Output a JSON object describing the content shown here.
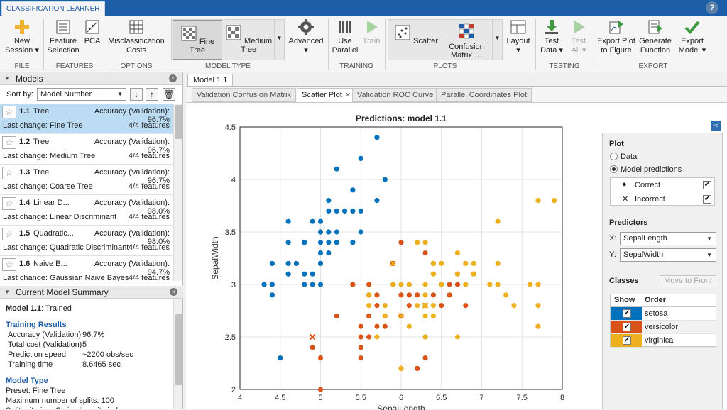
{
  "app": {
    "title": "CLASSIFICATION LEARNER",
    "help": "?"
  },
  "ribbon": {
    "buttons": {
      "new_session": "New\nSession ▾",
      "feature_selection": "Feature\nSelection",
      "pca": "PCA",
      "misclassification_costs": "Misclassification\nCosts",
      "advanced": "Advanced\n▾",
      "use_parallel": "Use\nParallel",
      "train": "Train",
      "scatter": "Scatter",
      "confusion_matrix": "Confusion\nMatrix …",
      "layout": "Layout\n▾",
      "test_data": "Test\nData ▾",
      "test_all": "Test\nAll ▾",
      "export_plot": "Export Plot\nto Figure",
      "generate_function": "Generate\nFunction",
      "export_model": "Export\nModel ▾"
    },
    "gallery": {
      "fine_tree": "Fine Tree",
      "medium_tree": "Medium Tree"
    },
    "groups": {
      "file": "FILE",
      "features": "FEATURES",
      "options": "OPTIONS",
      "model_type": "MODEL TYPE",
      "training": "TRAINING",
      "plots": "PLOTS",
      "testing": "TESTING",
      "export": "EXPORT"
    }
  },
  "models_panel": {
    "title": "Models",
    "sort_label": "Sort by:",
    "sort_value": "Model Number",
    "models": [
      {
        "num": "1.1",
        "name": "Tree",
        "accuracy": "Accuracy (Validation): 96.7%",
        "last_change": "Last change: Fine Tree",
        "features": "4/4 features"
      },
      {
        "num": "1.2",
        "name": "Tree",
        "accuracy": "Accuracy (Validation): 96.7%",
        "last_change": "Last change: Medium Tree",
        "features": "4/4 features"
      },
      {
        "num": "1.3",
        "name": "Tree",
        "accuracy": "Accuracy (Validation): 96.7%",
        "last_change": "Last change: Coarse Tree",
        "features": "4/4 features"
      },
      {
        "num": "1.4",
        "name": "Linear D...",
        "accuracy": "Accuracy (Validation): 98.0%",
        "last_change": "Last change: Linear Discriminant",
        "features": "4/4 features"
      },
      {
        "num": "1.5",
        "name": "Quadratic...",
        "accuracy": "Accuracy (Validation): 98.0%",
        "last_change": "Last change: Quadratic Discriminant",
        "features": "4/4 features"
      },
      {
        "num": "1.6",
        "name": "Naive B...",
        "accuracy": "Accuracy (Validation): 94.7%",
        "last_change": "Last change: Gaussian Naive Bayes",
        "features": "4/4 features"
      }
    ]
  },
  "summary": {
    "title": "Current Model Summary",
    "model": "Model 1.1",
    "state": ": Trained",
    "training_title": "Training Results",
    "results": [
      {
        "k": "Accuracy (Validation)",
        "v": "96.7%"
      },
      {
        "k": "Total cost (Validation)",
        "v": "5"
      },
      {
        "k": "Prediction speed",
        "v": "~2200 obs/sec"
      },
      {
        "k": "Training time",
        "v": "8.6465 sec"
      }
    ],
    "model_type_title": "Model Type",
    "model_type": [
      "Preset: Fine Tree",
      "Maximum number of splits: 100",
      "Split criterion: Gini's diversity index"
    ]
  },
  "doc_tab": "Model 1.1",
  "plot_tabs": [
    {
      "label": "Validation Confusion Matrix",
      "active": false
    },
    {
      "label": "Scatter Plot",
      "active": true
    },
    {
      "label": "Validation ROC Curve",
      "active": false
    },
    {
      "label": "Parallel Coordinates Plot",
      "active": false
    }
  ],
  "side": {
    "plot_title": "Plot",
    "radio_data": "Data",
    "radio_pred": "Model predictions",
    "correct": "Correct",
    "incorrect": "Incorrect",
    "predictors_title": "Predictors",
    "x_label": "X:",
    "x_value": "SepalLength",
    "y_label": "Y:",
    "y_value": "SepalWidth",
    "classes_title": "Classes",
    "move_front": "Move to Front",
    "col_show": "Show",
    "col_order": "Order",
    "classes": [
      {
        "name": "setosa",
        "color": "#0072bd"
      },
      {
        "name": "versicolor",
        "color": "#d95319"
      },
      {
        "name": "virginica",
        "color": "#edb120"
      }
    ]
  },
  "chart_data": {
    "type": "scatter",
    "title": "Predictions: model 1.1",
    "xlabel": "SepalLength",
    "ylabel": "SepalWidth",
    "xlim": [
      4,
      8
    ],
    "ylim": [
      2,
      4.5
    ],
    "xticks": [
      "4",
      "4.5",
      "5",
      "5.5",
      "6",
      "6.5",
      "7",
      "7.5",
      "8"
    ],
    "yticks": [
      "2",
      "2.5",
      "3",
      "3.5",
      "4",
      "4.5"
    ],
    "grid": true,
    "series": [
      {
        "name": "setosa",
        "color": "#0072bd",
        "marker": "dot",
        "points": [
          [
            5.7,
            4.4
          ],
          [
            5.5,
            4.2
          ],
          [
            5.2,
            4.1
          ],
          [
            5.8,
            4.0
          ],
          [
            5.4,
            3.9
          ],
          [
            5.1,
            3.8
          ],
          [
            5.7,
            3.8
          ],
          [
            5.5,
            3.7
          ],
          [
            5.1,
            3.7
          ],
          [
            5.3,
            3.7
          ],
          [
            5.2,
            3.7
          ],
          [
            5.4,
            3.7
          ],
          [
            4.6,
            3.6
          ],
          [
            5.0,
            3.6
          ],
          [
            4.9,
            3.6
          ],
          [
            5.1,
            3.5
          ],
          [
            5.0,
            3.5
          ],
          [
            5.2,
            3.5
          ],
          [
            4.8,
            3.4
          ],
          [
            5.0,
            3.4
          ],
          [
            5.4,
            3.4
          ],
          [
            5.1,
            3.4
          ],
          [
            4.6,
            3.4
          ],
          [
            5.2,
            3.4
          ],
          [
            5.5,
            3.5
          ],
          [
            4.8,
            3.4
          ],
          [
            5.0,
            3.3
          ],
          [
            5.1,
            3.3
          ],
          [
            4.4,
            3.2
          ],
          [
            4.6,
            3.2
          ],
          [
            4.7,
            3.2
          ],
          [
            5.0,
            3.2
          ],
          [
            4.6,
            3.1
          ],
          [
            4.8,
            3.1
          ],
          [
            4.9,
            3.1
          ],
          [
            4.4,
            3.0
          ],
          [
            4.3,
            3.0
          ],
          [
            4.8,
            3.0
          ],
          [
            4.9,
            3.0
          ],
          [
            5.0,
            3.0
          ],
          [
            4.4,
            2.9
          ],
          [
            4.5,
            2.3
          ],
          [
            5.1,
            3.5
          ]
        ]
      },
      {
        "name": "versicolor",
        "color": "#d95319",
        "marker": "dot",
        "points": [
          [
            6.0,
            3.4
          ],
          [
            6.3,
            3.3
          ],
          [
            5.9,
            3.2
          ],
          [
            6.7,
            3.1
          ],
          [
            6.9,
            3.1
          ],
          [
            6.4,
            3.2
          ],
          [
            5.4,
            3.0
          ],
          [
            5.6,
            3.0
          ],
          [
            5.9,
            3.0
          ],
          [
            6.1,
            3.0
          ],
          [
            6.6,
            3.0
          ],
          [
            6.7,
            3.0
          ],
          [
            5.6,
            2.9
          ],
          [
            5.7,
            2.9
          ],
          [
            6.0,
            2.9
          ],
          [
            6.1,
            2.9
          ],
          [
            6.2,
            2.9
          ],
          [
            6.6,
            2.9
          ],
          [
            6.4,
            2.9
          ],
          [
            5.7,
            2.8
          ],
          [
            6.1,
            2.8
          ],
          [
            6.5,
            2.8
          ],
          [
            6.8,
            2.8
          ],
          [
            5.8,
            2.7
          ],
          [
            5.2,
            2.7
          ],
          [
            6.0,
            2.7
          ],
          [
            6.3,
            2.5
          ],
          [
            5.5,
            2.6
          ],
          [
            5.8,
            2.6
          ],
          [
            5.6,
            2.5
          ],
          [
            5.5,
            2.5
          ],
          [
            5.7,
            2.6
          ],
          [
            6.2,
            2.2
          ],
          [
            5.5,
            2.4
          ],
          [
            5.5,
            2.3
          ],
          [
            5.0,
            2.3
          ],
          [
            6.3,
            2.3
          ],
          [
            4.9,
            2.4
          ],
          [
            6.0,
            2.2
          ],
          [
            5.6,
            2.7
          ],
          [
            5.0,
            2.0
          ]
        ]
      },
      {
        "name": "virginica",
        "color": "#edb120",
        "marker": "dot",
        "points": [
          [
            7.7,
            3.8
          ],
          [
            7.9,
            3.8
          ],
          [
            7.2,
            3.6
          ],
          [
            6.2,
            3.4
          ],
          [
            6.3,
            3.4
          ],
          [
            6.4,
            3.2
          ],
          [
            6.5,
            3.2
          ],
          [
            7.2,
            3.2
          ],
          [
            6.9,
            3.1
          ],
          [
            6.7,
            3.1
          ],
          [
            6.4,
            3.1
          ],
          [
            6.3,
            3.0
          ],
          [
            6.5,
            3.0
          ],
          [
            6.1,
            3.0
          ],
          [
            7.1,
            3.0
          ],
          [
            7.7,
            3.0
          ],
          [
            7.6,
            3.0
          ],
          [
            7.2,
            3.0
          ],
          [
            6.8,
            3.2
          ],
          [
            6.7,
            3.3
          ],
          [
            6.4,
            2.8
          ],
          [
            6.3,
            2.8
          ],
          [
            7.4,
            2.8
          ],
          [
            5.8,
            2.8
          ],
          [
            6.2,
            2.8
          ],
          [
            7.7,
            2.8
          ],
          [
            7.3,
            2.9
          ],
          [
            6.3,
            2.9
          ],
          [
            5.6,
            2.8
          ],
          [
            6.3,
            2.7
          ],
          [
            5.8,
            2.7
          ],
          [
            6.0,
            2.2
          ],
          [
            6.3,
            2.5
          ],
          [
            6.7,
            2.5
          ],
          [
            7.7,
            2.6
          ],
          [
            6.9,
            3.2
          ],
          [
            6.5,
            3.0
          ],
          [
            5.7,
            2.5
          ],
          [
            5.9,
            3.0
          ],
          [
            7.7,
            2.6
          ],
          [
            6.1,
            2.6
          ],
          [
            6.0,
            3.0
          ],
          [
            6.8,
            3.0
          ],
          [
            6.4,
            2.7
          ],
          [
            6.5,
            3.0
          ],
          [
            5.6,
            2.9
          ],
          [
            6.7,
            3.3
          ]
        ]
      },
      {
        "name": "incorrect-versicolor",
        "color": "#d95319",
        "marker": "x",
        "points": [
          [
            4.9,
            2.5
          ],
          [
            6.3,
            2.8
          ]
        ]
      },
      {
        "name": "incorrect-virginica",
        "color": "#edb120",
        "marker": "x",
        "points": [
          [
            5.9,
            3.2
          ],
          [
            6.0,
            2.7
          ],
          [
            6.3,
            2.8
          ]
        ]
      }
    ]
  }
}
